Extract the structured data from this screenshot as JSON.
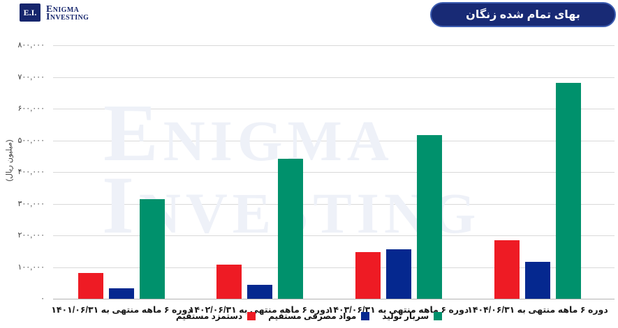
{
  "brand": {
    "monogram": "E.I.",
    "line1": "Enigma",
    "line2": "Investing"
  },
  "header": {
    "badge_title": "بهای تمام شده زنگان"
  },
  "watermark": {
    "line1": "Enigma",
    "line2": "Investing"
  },
  "chart_data": {
    "type": "bar",
    "title": "بهای تمام شده زنگان",
    "ylabel": "(میلیون ریال)",
    "y_axis": {
      "min": 0,
      "max": 800000,
      "step": 100000
    },
    "ytick_labels": [
      "۰",
      "۱۰۰,۰۰۰",
      "۲۰۰,۰۰۰",
      "۳۰۰,۰۰۰",
      "۴۰۰,۰۰۰",
      "۵۰۰,۰۰۰",
      "۶۰۰,۰۰۰",
      "۷۰۰,۰۰۰",
      "۸۰۰,۰۰۰"
    ],
    "categories": [
      "دوره ۶ ماهه منتهی به ۱۴۰۱/۰۶/۳۱",
      "دوره ۶ ماهه منتهی به ۱۴۰۲/۰۶/۳۱",
      "دوره ۶ ماهه منتهی به ۱۴۰۳/۰۶/۳۱",
      "دوره ۶ ماهه منتهی به ۱۴۰۴/۰۶/۳۱"
    ],
    "series": [
      {
        "name": "دستمزد مستقیم",
        "color": "#ee1b24",
        "values": [
          81000,
          108000,
          147000,
          184000
        ]
      },
      {
        "name": "مواد مصرفی مستقیم",
        "color": "#05288f",
        "values": [
          33000,
          43000,
          157000,
          117000
        ]
      },
      {
        "name": "سربار تولید",
        "color": "#00916c",
        "values": [
          314000,
          441000,
          516000,
          681000
        ]
      }
    ],
    "grid": true,
    "legend_position": "bottom"
  }
}
